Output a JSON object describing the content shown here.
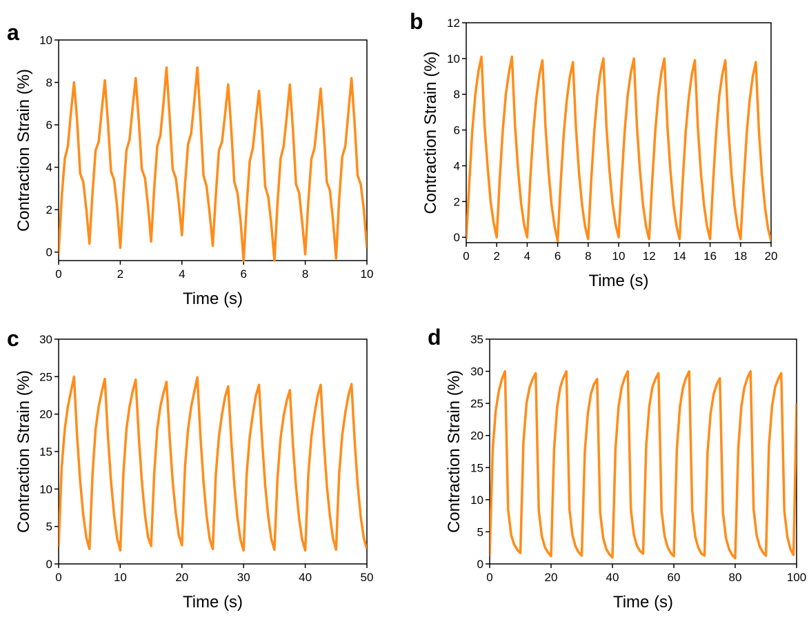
{
  "chart_data": [
    {
      "type": "line",
      "panel_label": "a",
      "xlabel": "Time (s)",
      "ylabel": "Contraction Strain (%)",
      "color": "#ff8c1a",
      "xlim": [
        0,
        10
      ],
      "ylim": [
        -0.4,
        10
      ],
      "xticks": [
        0,
        2,
        4,
        6,
        8,
        10
      ],
      "yticks": [
        0,
        2,
        4,
        6,
        8,
        10
      ],
      "x": [
        0,
        0.1,
        0.2,
        0.3,
        0.4,
        0.5,
        0.6,
        0.7,
        0.8,
        0.9,
        1,
        1.1,
        1.2,
        1.3,
        1.4,
        1.5,
        1.6,
        1.7,
        1.8,
        1.9,
        2,
        2.1,
        2.2,
        2.3,
        2.4,
        2.5,
        2.6,
        2.7,
        2.8,
        2.9,
        3,
        3.1,
        3.2,
        3.3,
        3.4,
        3.5,
        3.6,
        3.7,
        3.8,
        3.9,
        4,
        4.1,
        4.2,
        4.3,
        4.4,
        4.5,
        4.6,
        4.7,
        4.8,
        4.9,
        5,
        5.1,
        5.2,
        5.3,
        5.4,
        5.5,
        5.6,
        5.7,
        5.8,
        5.9,
        6,
        6.1,
        6.2,
        6.3,
        6.4,
        6.5,
        6.6,
        6.7,
        6.8,
        6.9,
        7,
        7.1,
        7.2,
        7.3,
        7.4,
        7.5,
        7.6,
        7.7,
        7.8,
        7.9,
        8,
        8.1,
        8.2,
        8.3,
        8.4,
        8.5,
        8.6,
        8.7,
        8.8,
        8.9,
        9,
        9.1,
        9.2,
        9.3,
        9.4,
        9.5,
        9.6,
        9.7,
        9.8,
        9.9,
        10
      ],
      "values": [
        -0.1,
        2.6,
        4.4,
        5.0,
        6.6,
        8.0,
        6.2,
        3.7,
        3.3,
        2.0,
        0.4,
        2.8,
        4.8,
        5.2,
        6.7,
        8.1,
        6.1,
        3.8,
        3.4,
        2.1,
        0.2,
        2.7,
        4.8,
        5.3,
        6.8,
        8.2,
        6.2,
        3.9,
        3.5,
        2.2,
        0.5,
        3.0,
        5.0,
        5.5,
        7.0,
        8.7,
        6.4,
        3.9,
        3.5,
        2.3,
        0.8,
        3.2,
        5.1,
        5.6,
        7.1,
        8.7,
        6.3,
        3.6,
        3.1,
        1.8,
        0.3,
        2.7,
        4.8,
        5.2,
        6.5,
        7.9,
        5.8,
        3.3,
        2.8,
        1.5,
        -0.4,
        2.2,
        4.3,
        4.9,
        6.3,
        7.6,
        5.7,
        3.1,
        2.6,
        1.3,
        -0.4,
        2.3,
        4.4,
        5.0,
        6.4,
        7.9,
        5.8,
        3.2,
        2.8,
        1.4,
        -0.1,
        2.4,
        4.4,
        4.9,
        6.3,
        7.7,
        5.7,
        3.3,
        2.9,
        1.5,
        -0.3,
        2.5,
        4.5,
        5.0,
        6.6,
        8.2,
        6.1,
        3.6,
        3.2,
        2.0,
        0.2
      ]
    },
    {
      "type": "line",
      "panel_label": "b",
      "xlabel": "Time (s)",
      "ylabel": "Contraction Strain (%)",
      "color": "#ff8c1a",
      "xlim": [
        0,
        20
      ],
      "ylim": [
        -0.3,
        12
      ],
      "xticks": [
        0,
        2,
        4,
        6,
        8,
        10,
        12,
        14,
        16,
        18,
        20
      ],
      "yticks": [
        0,
        2,
        4,
        6,
        8,
        10,
        12
      ],
      "x": [
        0,
        0.2,
        0.4,
        0.6,
        0.8,
        1,
        1.2,
        1.4,
        1.6,
        1.8,
        2,
        2.2,
        2.4,
        2.6,
        2.8,
        3,
        3.2,
        3.4,
        3.6,
        3.8,
        4,
        4.2,
        4.4,
        4.6,
        4.8,
        5,
        5.2,
        5.4,
        5.6,
        5.8,
        6,
        6.2,
        6.4,
        6.6,
        6.8,
        7,
        7.2,
        7.4,
        7.6,
        7.8,
        8,
        8.2,
        8.4,
        8.6,
        8.8,
        9,
        9.2,
        9.4,
        9.6,
        9.8,
        10,
        10.2,
        10.4,
        10.6,
        10.8,
        11,
        11.2,
        11.4,
        11.6,
        11.8,
        12,
        12.2,
        12.4,
        12.6,
        12.8,
        13,
        13.2,
        13.4,
        13.6,
        13.8,
        14,
        14.2,
        14.4,
        14.6,
        14.8,
        15,
        15.2,
        15.4,
        15.6,
        15.8,
        16,
        16.2,
        16.4,
        16.6,
        16.8,
        17,
        17.2,
        17.4,
        17.6,
        17.8,
        18,
        18.2,
        18.4,
        18.6,
        18.8,
        19,
        19.2,
        19.4,
        19.6,
        19.8,
        20
      ],
      "values": [
        -0.1,
        3.0,
        6.0,
        8.0,
        9.3,
        10.1,
        6.3,
        4.0,
        2.0,
        0.8,
        0.0,
        3.3,
        6.0,
        8.0,
        9.2,
        10.1,
        6.3,
        3.8,
        1.9,
        0.7,
        0.0,
        3.2,
        5.9,
        7.8,
        9.1,
        9.9,
        6.2,
        3.7,
        1.8,
        0.6,
        -0.2,
        3.1,
        5.8,
        7.7,
        9.0,
        9.8,
        6.1,
        3.6,
        1.8,
        0.6,
        -0.1,
        3.2,
        5.9,
        7.9,
        9.2,
        10.0,
        6.2,
        3.7,
        1.9,
        0.7,
        0.0,
        3.2,
        6.0,
        8.0,
        9.2,
        10.0,
        6.2,
        3.7,
        1.8,
        0.6,
        -0.1,
        3.1,
        5.9,
        7.9,
        9.2,
        10.0,
        6.2,
        3.7,
        1.8,
        0.6,
        -0.1,
        3.1,
        5.9,
        7.8,
        9.1,
        9.9,
        6.1,
        3.6,
        1.8,
        0.6,
        -0.1,
        3.1,
        5.9,
        7.9,
        9.1,
        9.9,
        6.1,
        3.6,
        1.8,
        0.6,
        -0.1,
        3.0,
        5.8,
        7.7,
        9.0,
        9.8,
        6.0,
        3.5,
        1.7,
        0.5,
        -0.2
      ]
    },
    {
      "type": "line",
      "panel_label": "c",
      "xlabel": "Time (s)",
      "ylabel": "Contraction Strain (%)",
      "color": "#ff8c1a",
      "xlim": [
        0,
        50
      ],
      "ylim": [
        0,
        30
      ],
      "xticks": [
        0,
        10,
        20,
        30,
        40,
        50
      ],
      "yticks": [
        0,
        5,
        10,
        15,
        20,
        25,
        30
      ],
      "x": [
        0,
        0.5,
        1,
        1.5,
        2,
        2.5,
        3,
        3.5,
        4,
        4.5,
        5,
        5.5,
        6,
        6.5,
        7,
        7.5,
        8,
        8.5,
        9,
        9.5,
        10,
        10.5,
        11,
        11.5,
        12,
        12.5,
        13,
        13.5,
        14,
        14.5,
        15,
        15.5,
        16,
        16.5,
        17,
        17.5,
        18,
        18.5,
        19,
        19.5,
        20,
        20.5,
        21,
        21.5,
        22,
        22.5,
        23,
        23.5,
        24,
        24.5,
        25,
        25.5,
        26,
        26.5,
        27,
        27.5,
        28,
        28.5,
        29,
        29.5,
        30,
        30.5,
        31,
        31.5,
        32,
        32.5,
        33,
        33.5,
        34,
        34.5,
        35,
        35.5,
        36,
        36.5,
        37,
        37.5,
        38,
        38.5,
        39,
        39.5,
        40,
        40.5,
        41,
        41.5,
        42,
        42.5,
        43,
        43.5,
        44,
        44.5,
        45,
        45.5,
        46,
        46.5,
        47,
        47.5,
        48,
        48.5,
        49,
        49.5,
        50
      ],
      "values": [
        2.3,
        13,
        18,
        21,
        23,
        25.0,
        17,
        11,
        6.5,
        3.5,
        2.0,
        12,
        18,
        21,
        23,
        24.7,
        17,
        11,
        6.5,
        3.4,
        1.8,
        12,
        18,
        21,
        23,
        24.6,
        17,
        11,
        6.6,
        3.6,
        2.4,
        12,
        18,
        21,
        22.8,
        24.3,
        17,
        11,
        6.8,
        3.8,
        2.5,
        13,
        18,
        21,
        23,
        24.9,
        17,
        11,
        6.4,
        3.3,
        2.0,
        12,
        17,
        20,
        22.3,
        23.7,
        16.5,
        10.5,
        6.2,
        3.2,
        1.8,
        12,
        17,
        20,
        22.5,
        23.9,
        16.5,
        10.5,
        6.3,
        3.3,
        1.9,
        11.5,
        16.8,
        19.8,
        21.8,
        23.2,
        16,
        10.3,
        6.1,
        3.2,
        1.8,
        12,
        17,
        20,
        22.4,
        23.9,
        16.5,
        10.5,
        6.4,
        3.4,
        1.9,
        12,
        17.2,
        20.2,
        22.5,
        24.0,
        16.6,
        10.6,
        6.3,
        3.4,
        2.0
      ]
    },
    {
      "type": "line",
      "panel_label": "d",
      "xlabel": "Time (s)",
      "ylabel": "Contraction Strain (%)",
      "color": "#ff8c1a",
      "xlim": [
        0,
        100
      ],
      "ylim": [
        0,
        35
      ],
      "xticks": [
        0,
        20,
        40,
        60,
        80,
        100
      ],
      "yticks": [
        0,
        5,
        10,
        15,
        20,
        25,
        30,
        35
      ],
      "x": [
        0,
        1,
        2,
        3,
        4,
        5,
        6,
        7,
        8,
        9,
        10,
        11,
        12,
        13,
        14,
        15,
        16,
        17,
        18,
        19,
        20,
        21,
        22,
        23,
        24,
        25,
        26,
        27,
        28,
        29,
        30,
        31,
        32,
        33,
        34,
        35,
        36,
        37,
        38,
        39,
        40,
        41,
        42,
        43,
        44,
        45,
        46,
        47,
        48,
        49,
        50,
        51,
        52,
        53,
        54,
        55,
        56,
        57,
        58,
        59,
        60,
        61,
        62,
        63,
        64,
        65,
        66,
        67,
        68,
        69,
        70,
        71,
        72,
        73,
        74,
        75,
        76,
        77,
        78,
        79,
        80,
        81,
        82,
        83,
        84,
        85,
        86,
        87,
        88,
        89,
        90,
        91,
        92,
        93,
        94,
        95,
        96,
        97,
        98,
        99,
        100
      ],
      "values": [
        1.2,
        18,
        24,
        27,
        28.8,
        30.0,
        8.5,
        4.5,
        3.0,
        2.2,
        1.7,
        19,
        25,
        27.5,
        28.8,
        29.7,
        8.3,
        4.3,
        2.6,
        1.8,
        1.2,
        18,
        24.5,
        27.5,
        29,
        30.0,
        8.5,
        4.4,
        2.7,
        1.8,
        1.3,
        17.5,
        23.5,
        26.5,
        28,
        28.8,
        8.0,
        4.0,
        2.3,
        1.5,
        1.0,
        18,
        24.5,
        27.5,
        29,
        30.0,
        8.5,
        4.5,
        2.8,
        2.0,
        1.6,
        18.5,
        24.5,
        27.5,
        28.8,
        29.7,
        8.3,
        4.3,
        2.6,
        1.7,
        1.2,
        18,
        24.5,
        27.5,
        29,
        30.0,
        8.3,
        4.2,
        2.5,
        1.6,
        1.3,
        17.5,
        23.5,
        26.5,
        28,
        28.9,
        8.0,
        4.0,
        2.3,
        1.4,
        0.9,
        18,
        24.5,
        27.5,
        29,
        30.0,
        8.5,
        4.4,
        2.7,
        1.8,
        1.3,
        18.5,
        24.5,
        27.5,
        28.8,
        29.7,
        8.3,
        4.2,
        2.3,
        1.4,
        25
      ]
    }
  ]
}
